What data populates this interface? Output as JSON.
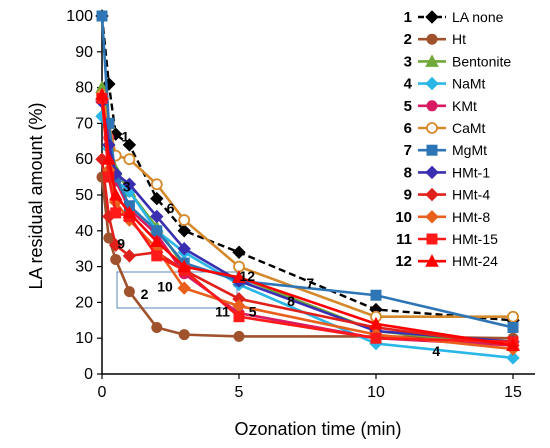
{
  "chart_data": {
    "type": "line",
    "xlabel": "Ozonation time (min)",
    "ylabel": "LA residual amount (%)",
    "xlim": [
      0,
      15
    ],
    "ylim": [
      0,
      100
    ],
    "xticks": [
      0,
      5,
      10,
      15
    ],
    "yticks": [
      0,
      10,
      20,
      30,
      40,
      50,
      60,
      70,
      80,
      90,
      100
    ],
    "grid": false,
    "legend_position": "top-right",
    "series": [
      {
        "num": "1",
        "name": "LA none",
        "color": "#000000",
        "marker": "diamond",
        "dash": true,
        "x": [
          0,
          0.25,
          0.5,
          1,
          2,
          3,
          5,
          10,
          15
        ],
        "y": [
          100,
          81,
          67,
          64,
          49,
          40,
          34,
          18,
          15
        ]
      },
      {
        "num": "2",
        "name": "Ht",
        "color": "#a0522d",
        "marker": "circle",
        "x": [
          0,
          0.25,
          0.5,
          1,
          2,
          3,
          5,
          10,
          15
        ],
        "y": [
          55,
          38,
          32,
          23,
          13,
          11,
          10.5,
          10.5,
          10
        ]
      },
      {
        "num": "3",
        "name": "Bentonite",
        "color": "#70a83a",
        "marker": "triangle",
        "x": [
          0,
          0.25,
          0.5,
          1,
          2,
          3,
          5,
          10,
          15
        ],
        "y": [
          80,
          70,
          57,
          51,
          41,
          30,
          27,
          12,
          8
        ]
      },
      {
        "num": "4",
        "name": "NaMt",
        "color": "#2ab7e8",
        "marker": "diamond",
        "x": [
          0,
          0.25,
          0.5,
          1,
          2,
          3,
          5,
          10,
          15
        ],
        "y": [
          72,
          63,
          54,
          51,
          40,
          34,
          25,
          8.5,
          4.5
        ]
      },
      {
        "num": "5",
        "name": "KMt",
        "color": "#d81b60",
        "marker": "circle",
        "x": [
          0,
          0.25,
          0.5,
          1,
          2,
          3,
          5,
          10,
          15
        ],
        "y": [
          78,
          66,
          54,
          46,
          39,
          28,
          17,
          10,
          8
        ]
      },
      {
        "num": "6",
        "name": "CaMt",
        "color": "#d4892b",
        "marker": "circle-open",
        "x": [
          0,
          0.25,
          0.5,
          1,
          2,
          3,
          5,
          10,
          15
        ],
        "y": [
          78,
          70,
          61,
          60,
          53,
          43,
          30,
          16,
          16
        ]
      },
      {
        "num": "7",
        "name": "MgMt",
        "color": "#2e75b6",
        "marker": "square",
        "x": [
          0,
          0.25,
          0.5,
          1,
          2,
          3,
          5,
          10,
          15
        ],
        "y": [
          100,
          70,
          55,
          47,
          40,
          31,
          26,
          22,
          13
        ]
      },
      {
        "num": "8",
        "name": "HMt-1",
        "color": "#3a2fb0",
        "marker": "diamond",
        "x": [
          0,
          0.25,
          0.5,
          1,
          2,
          3,
          5,
          10,
          15
        ],
        "y": [
          76,
          64,
          56,
          53,
          44,
          35,
          26,
          12,
          9
        ]
      },
      {
        "num": "9",
        "name": "HMt-4",
        "color": "#e0201b",
        "marker": "diamond",
        "x": [
          0,
          0.25,
          0.5,
          1,
          2,
          3,
          5,
          10,
          15
        ],
        "y": [
          60,
          44,
          36,
          33,
          34,
          29,
          21,
          13,
          8
        ]
      },
      {
        "num": "10",
        "name": "HMt-8",
        "color": "#e8601c",
        "marker": "diamond",
        "x": [
          0,
          0.25,
          0.5,
          1,
          2,
          3,
          5,
          10,
          15
        ],
        "y": [
          77,
          57,
          48,
          43,
          35,
          24,
          19,
          11,
          7
        ]
      },
      {
        "num": "11",
        "name": "HMt-15",
        "color": "#ff1a1a",
        "marker": "square",
        "x": [
          0,
          0.25,
          0.5,
          1,
          2,
          3,
          5,
          10,
          15
        ],
        "y": [
          77,
          55,
          45,
          44,
          33,
          29,
          16,
          10,
          9
        ]
      },
      {
        "num": "12",
        "name": "HMt-24",
        "color": "#ff0000",
        "marker": "triangle",
        "x": [
          0,
          0.25,
          0.5,
          1,
          2,
          3,
          5,
          10,
          15
        ],
        "y": [
          78,
          60,
          50,
          45,
          37,
          30,
          27,
          14,
          8
        ]
      }
    ],
    "annotations": [
      {
        "text": "1",
        "x": 0.85,
        "y": 65
      },
      {
        "text": "3",
        "x": 0.9,
        "y": 51
      },
      {
        "text": "6",
        "x": 2.5,
        "y": 45
      },
      {
        "text": "9",
        "x": 0.7,
        "y": 35
      },
      {
        "text": "2",
        "x": 1.55,
        "y": 21
      },
      {
        "text": "10",
        "x": 2.3,
        "y": 23
      },
      {
        "text": "12",
        "x": 5.3,
        "y": 26
      },
      {
        "text": "7",
        "x": 7.6,
        "y": 24
      },
      {
        "text": "8",
        "x": 6.9,
        "y": 19
      },
      {
        "text": "11",
        "x": 4.4,
        "y": 16
      },
      {
        "text": "5",
        "x": 5.5,
        "y": 16
      },
      {
        "text": "4",
        "x": 12.2,
        "y": 5
      }
    ]
  }
}
